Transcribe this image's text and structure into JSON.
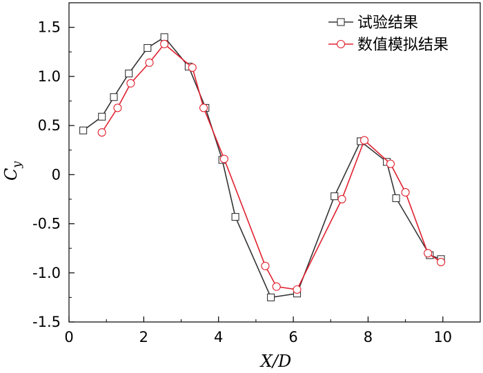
{
  "chart_data": {
    "type": "line",
    "xlabel": "X/D",
    "ylabel_main": "C",
    "ylabel_sub": "y",
    "xlim": [
      0,
      11
    ],
    "ylim": [
      -1.5,
      1.75
    ],
    "xticks": [
      0,
      2,
      4,
      6,
      8,
      10
    ],
    "yticks": [
      -1.5,
      -1.0,
      -0.5,
      0,
      0.5,
      1.0,
      1.5
    ],
    "ytick_labels": [
      "-1.5",
      "-1.0",
      "-0.5",
      "0",
      "0.5",
      "1.0",
      "1.5"
    ],
    "grid": false,
    "legend_position": "top-right",
    "series": [
      {
        "name": "试验结果",
        "color": "#333333",
        "marker": "square",
        "points": [
          [
            0.38,
            0.45
          ],
          [
            0.88,
            0.59
          ],
          [
            1.2,
            0.79
          ],
          [
            1.6,
            1.03
          ],
          [
            2.1,
            1.29
          ],
          [
            2.55,
            1.4
          ],
          [
            3.2,
            1.1
          ],
          [
            3.65,
            0.68
          ],
          [
            4.1,
            0.15
          ],
          [
            4.45,
            -0.43
          ],
          [
            5.4,
            -1.25
          ],
          [
            6.1,
            -1.21
          ],
          [
            7.1,
            -0.22
          ],
          [
            7.8,
            0.34
          ],
          [
            8.5,
            0.13
          ],
          [
            8.75,
            -0.24
          ],
          [
            9.65,
            -0.82
          ],
          [
            9.95,
            -0.86
          ]
        ]
      },
      {
        "name": "数值模拟结果",
        "color": "#e0202e",
        "marker": "circle",
        "points": [
          [
            0.88,
            0.43
          ],
          [
            1.3,
            0.68
          ],
          [
            1.65,
            0.93
          ],
          [
            2.15,
            1.14
          ],
          [
            2.55,
            1.33
          ],
          [
            3.3,
            1.09
          ],
          [
            3.6,
            0.68
          ],
          [
            4.15,
            0.16
          ],
          [
            5.25,
            -0.93
          ],
          [
            5.55,
            -1.14
          ],
          [
            6.1,
            -1.17
          ],
          [
            7.3,
            -0.25
          ],
          [
            7.9,
            0.35
          ],
          [
            8.6,
            0.11
          ],
          [
            9.0,
            -0.18
          ],
          [
            9.6,
            -0.8
          ],
          [
            9.95,
            -0.89
          ]
        ]
      }
    ]
  }
}
